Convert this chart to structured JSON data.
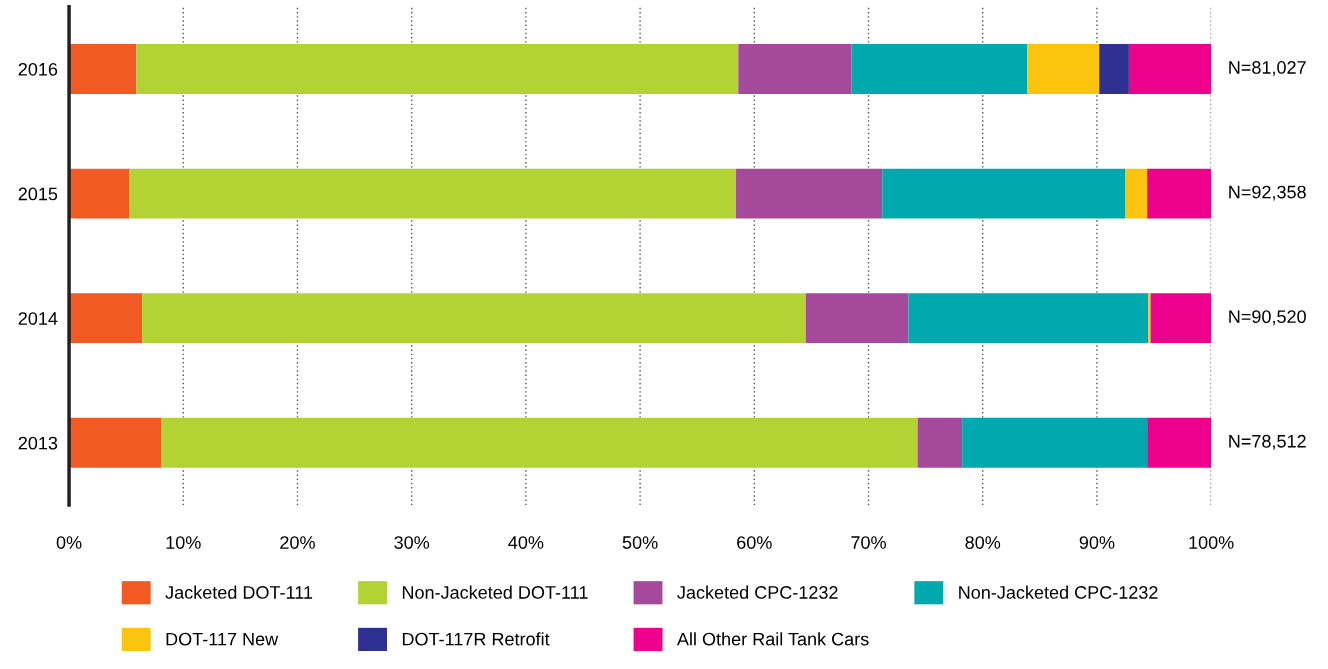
{
  "chart_data": {
    "type": "bar",
    "orientation": "horizontal",
    "stacked": true,
    "categories": [
      "2016",
      "2015",
      "2014",
      "2013"
    ],
    "series": [
      {
        "name": "Jacketed DOT-111",
        "color": "#f15a22",
        "values": [
          5.9,
          5.3,
          6.4,
          8.1
        ]
      },
      {
        "name": "Non-Jacketed DOT-111",
        "color": "#b3d335",
        "values": [
          52.7,
          53.1,
          58.1,
          66.2
        ]
      },
      {
        "name": "Jacketed CPC-1232",
        "color": "#a54a9a",
        "values": [
          9.9,
          12.8,
          9.0,
          3.9
        ]
      },
      {
        "name": "Non-Jacketed CPC-1232",
        "color": "#00a9ae",
        "values": [
          15.4,
          21.3,
          21.0,
          16.2
        ]
      },
      {
        "name": "DOT-117 New",
        "color": "#fdc40f",
        "values": [
          6.3,
          1.9,
          0.2,
          0
        ]
      },
      {
        "name": "DOT-117R Retrofit",
        "color": "#2e3192",
        "values": [
          2.6,
          0,
          0,
          0
        ]
      },
      {
        "name": "All Other Rail Tank Cars",
        "color": "#ec008c",
        "values": [
          7.2,
          5.6,
          5.3,
          5.6
        ]
      }
    ],
    "xlim": [
      0,
      100
    ],
    "xticks": [
      {
        "value": 0,
        "label": "0%"
      },
      {
        "value": 10,
        "label": "10%"
      },
      {
        "value": 20,
        "label": "20%"
      },
      {
        "value": 30,
        "label": "30%"
      },
      {
        "value": 40,
        "label": "40%"
      },
      {
        "value": 50,
        "label": "50%"
      },
      {
        "value": 60,
        "label": "60%"
      },
      {
        "value": 70,
        "label": "70%"
      },
      {
        "value": 80,
        "label": "80%"
      },
      {
        "value": 90,
        "label": "90%"
      },
      {
        "value": 100,
        "label": "100%"
      }
    ],
    "grid": "x",
    "legend": "bottom",
    "annotations": [
      "N=81,027",
      "N=92,358",
      "N=90,520",
      "N=78,512"
    ]
  }
}
